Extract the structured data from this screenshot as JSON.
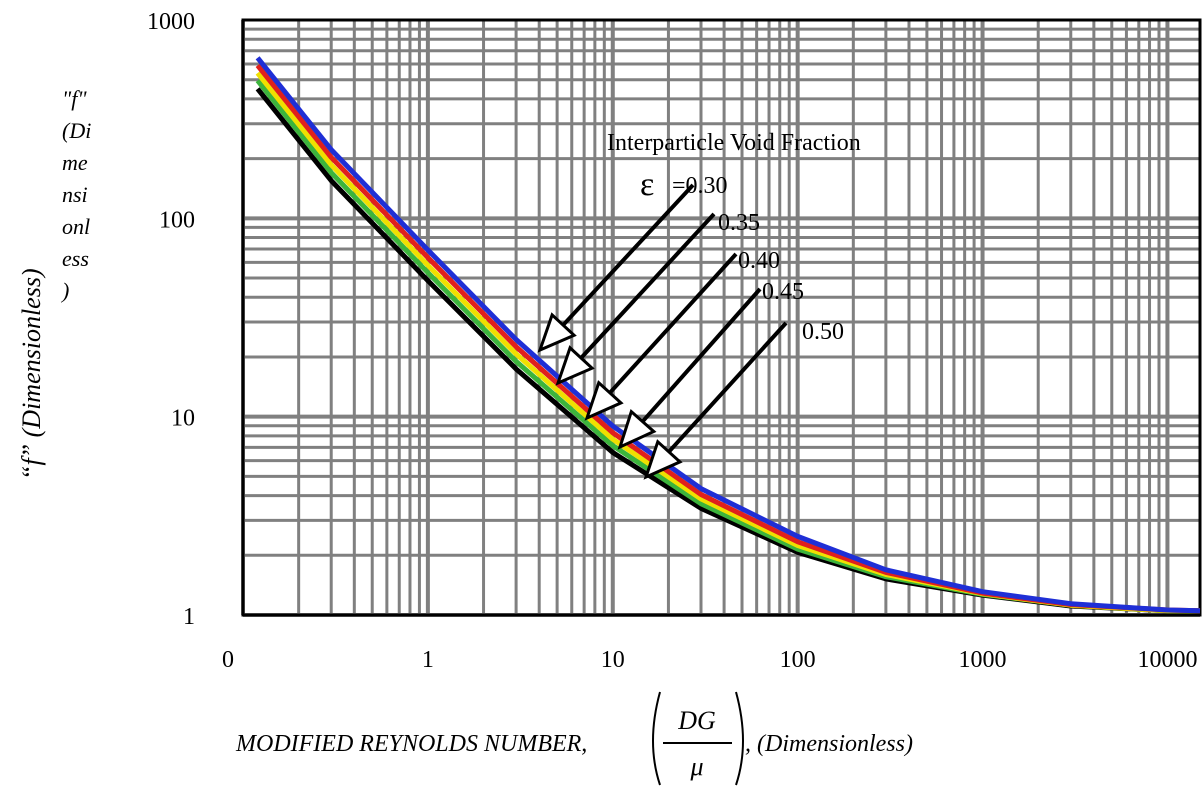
{
  "chart_data": {
    "type": "line",
    "title": "",
    "scale": {
      "x": "log",
      "y": "log"
    },
    "xlim": [
      0.1,
      15000
    ],
    "ylim": [
      1,
      1000
    ],
    "grid": true,
    "x_ticks": [
      {
        "value": 0.1,
        "label": "0"
      },
      {
        "value": 1,
        "label": "1"
      },
      {
        "value": 10,
        "label": "10"
      },
      {
        "value": 100,
        "label": "100"
      },
      {
        "value": 1000,
        "label": "1000"
      },
      {
        "value": 10000,
        "label": "10000"
      }
    ],
    "y_ticks": [
      {
        "value": 1,
        "label": "1"
      },
      {
        "value": 10,
        "label": "10"
      },
      {
        "value": 100,
        "label": "100"
      },
      {
        "value": 1000,
        "label": "1000"
      }
    ],
    "xlabel": {
      "prefix": "MODIFIED REYNOLDS NUMBER,",
      "numerator": "DG",
      "denominator": "μ",
      "suffix": ", (Dimensionless)"
    },
    "ylabel": "“f” (Dimensionless)",
    "ylabel_wrapped": [
      "\"f\"",
      "(Di",
      "me",
      "nsi",
      "onl",
      "ess",
      ")"
    ],
    "legend": {
      "title": "Interparticle Void Fraction",
      "symbol": "ε",
      "placement": "inside-right"
    },
    "x": [
      0.1,
      0.3,
      1,
      3,
      10,
      30,
      100,
      300,
      1000,
      3000,
      10000,
      15000
    ],
    "series": [
      {
        "name": "=0.30",
        "color": "#1f2fd6",
        "values": [
          645,
          222,
          69.2,
          24.5,
          8.97,
          4.34,
          2.49,
          1.69,
          1.31,
          1.14,
          1.06,
          1.05
        ]
      },
      {
        "name": "0.35",
        "color": "#e0201c",
        "values": [
          590,
          203,
          63.4,
          22.5,
          8.3,
          4.05,
          2.34,
          1.64,
          1.29,
          1.13,
          1.06,
          1.05
        ]
      },
      {
        "name": "0.40",
        "color": "#f0e000",
        "values": [
          540,
          186,
          58.0,
          20.7,
          7.7,
          3.85,
          2.24,
          1.6,
          1.28,
          1.12,
          1.05,
          1.05
        ]
      },
      {
        "name": "0.45",
        "color": "#3cb43c",
        "values": [
          495,
          170,
          53.2,
          19.0,
          7.15,
          3.64,
          2.15,
          1.56,
          1.27,
          1.12,
          1.05,
          1.05
        ]
      },
      {
        "name": "0.50",
        "color": "#000000",
        "values": [
          450,
          155,
          48.5,
          17.4,
          6.6,
          3.45,
          2.07,
          1.52,
          1.26,
          1.11,
          1.05,
          1.05
        ]
      }
    ]
  }
}
